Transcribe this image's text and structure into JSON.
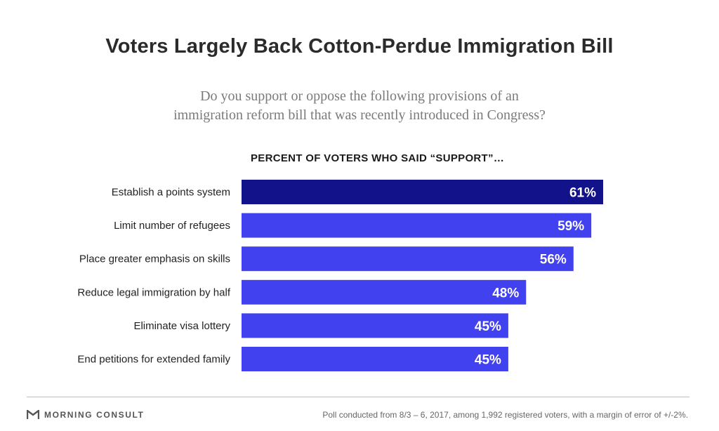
{
  "header": {
    "title": "Voters Largely Back Cotton-Perdue Immigration Bill",
    "subtitle_line1": "Do you support or oppose the following provisions of an",
    "subtitle_line2": "immigration reform bill that was recently introduced in Congress?"
  },
  "chart_data": {
    "type": "bar",
    "orientation": "horizontal",
    "title": "PERCENT OF VOTERS WHO SAID “SUPPORT”…",
    "categories": [
      "Establish a points system",
      "Limit number of refugees",
      "Place greater emphasis on skills",
      "Reduce legal immigration by half",
      "Eliminate visa lottery",
      "End petitions for extended family"
    ],
    "values": [
      61,
      59,
      56,
      48,
      45,
      45
    ],
    "value_labels": [
      "61%",
      "59%",
      "56%",
      "48%",
      "45%",
      "45%"
    ],
    "unit": "%",
    "xlim": [
      0,
      61
    ],
    "colors": {
      "highlight": "#12128a",
      "default": "#4141f0"
    },
    "highlight_index": 0,
    "grid": false,
    "legend": "none"
  },
  "footer": {
    "brand": "MORNING CONSULT",
    "note": "Poll conducted from 8/3 – 6, 2017, among 1,992 registered voters, with a margin of error of +/-2%."
  },
  "colors": {
    "title": "#2b2b2b",
    "subtitle": "#7a7a7a",
    "divider": "#bdbdbd"
  }
}
